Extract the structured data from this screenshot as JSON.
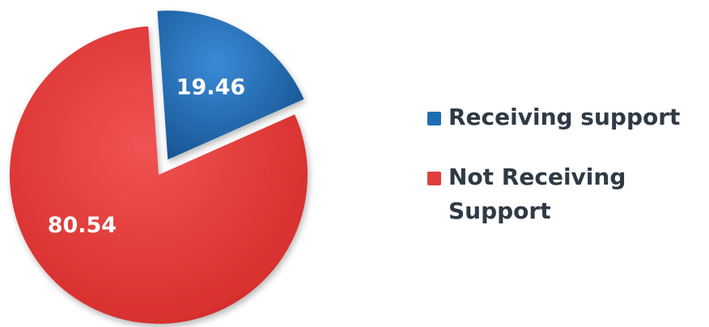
{
  "chart_data": {
    "type": "pie",
    "title": "",
    "slices": [
      {
        "label": "Receiving support",
        "value": 19.46,
        "display": "19.46",
        "color": "#1e6db3",
        "exploded": true
      },
      {
        "label": "Not Receiving\nSupport",
        "value": 80.54,
        "display": "80.54",
        "color": "#e23d3d",
        "exploded": false
      }
    ],
    "legend_position": "right"
  }
}
